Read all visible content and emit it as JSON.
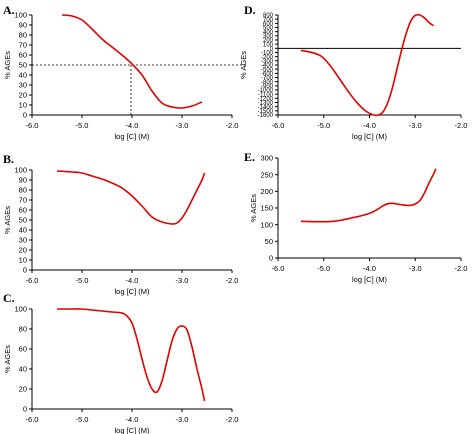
{
  "chart_data": [
    {
      "panel": "A.",
      "type": "line",
      "xlabel": "log [C] (M)",
      "ylabel": "% AGEs",
      "xlim": [
        -6.0,
        -2.0
      ],
      "ylim": [
        0,
        100
      ],
      "xticks": [
        "-6.0",
        "-5.0",
        "-4.0",
        "-3.0",
        "-2.0"
      ],
      "yticks": [
        "0",
        "10",
        "20",
        "30",
        "40",
        "50",
        "60",
        "70",
        "80",
        "90",
        "100"
      ],
      "x": [
        -5.4,
        -5.2,
        -5.0,
        -4.8,
        -4.6,
        -4.4,
        -4.2,
        -4.0,
        -3.8,
        -3.6,
        -3.4,
        -3.2,
        -3.0,
        -2.8,
        -2.6
      ],
      "y": [
        100,
        99,
        95,
        86,
        76,
        68,
        60,
        51,
        40,
        24,
        12,
        8,
        7,
        9,
        13
      ],
      "reference": {
        "y": 50,
        "x": -4.02
      },
      "grid": false
    },
    {
      "panel": "B.",
      "type": "line",
      "xlabel": "log [C] (M)",
      "ylabel": "% AGEs",
      "xlim": [
        -6.0,
        -2.0
      ],
      "ylim": [
        0,
        100
      ],
      "xticks": [
        "-6.0",
        "-5.0",
        "-4.0",
        "-3.0",
        "-2.0"
      ],
      "yticks": [
        "0",
        "10",
        "20",
        "30",
        "40",
        "50",
        "60",
        "70",
        "80",
        "90",
        "100"
      ],
      "x": [
        -5.5,
        -5.2,
        -5.0,
        -4.8,
        -4.6,
        -4.4,
        -4.2,
        -4.0,
        -3.8,
        -3.6,
        -3.4,
        -3.2,
        -3.1,
        -3.0,
        -2.9,
        -2.8,
        -2.7,
        -2.6,
        -2.55
      ],
      "y": [
        99,
        98,
        97,
        94,
        91,
        87,
        82,
        74,
        64,
        53,
        48,
        46,
        47,
        52,
        60,
        70,
        80,
        90,
        97
      ],
      "grid": false
    },
    {
      "panel": "C.",
      "type": "line",
      "xlabel": "log [C] (M)",
      "ylabel": "% AGEs",
      "xlim": [
        -6.0,
        -2.0
      ],
      "ylim": [
        0,
        100
      ],
      "xticks": [
        "-6.0",
        "-5.0",
        "-4.0",
        "-3.0",
        "-2.0"
      ],
      "yticks": [
        "0",
        "20",
        "40",
        "60",
        "80",
        "100"
      ],
      "x": [
        -5.5,
        -5.2,
        -5.0,
        -4.8,
        -4.6,
        -4.4,
        -4.2,
        -4.1,
        -4.0,
        -3.9,
        -3.8,
        -3.7,
        -3.6,
        -3.5,
        -3.4,
        -3.3,
        -3.2,
        -3.1,
        -3.0,
        -2.9,
        -2.8,
        -2.7,
        -2.6,
        -2.55
      ],
      "y": [
        100,
        100,
        100,
        99,
        98,
        97,
        96,
        93,
        86,
        70,
        50,
        32,
        20,
        17,
        28,
        48,
        68,
        80,
        83,
        79,
        62,
        40,
        20,
        8
      ],
      "grid": false
    },
    {
      "panel": "D.",
      "type": "line",
      "xlabel": "log [C] (M)",
      "ylabel": "% AGEs",
      "xlim": [
        -6.0,
        -2.0
      ],
      "ylim": [
        -1600,
        800
      ],
      "xticks": [
        "-6.0",
        "-5.0",
        "-4.0",
        "-3.0",
        "-2.0"
      ],
      "yticks": [
        "-1600",
        "-1500",
        "-1400",
        "-1300",
        "-1200",
        "-1100",
        "-1000",
        "-900",
        "-800",
        "-700",
        "-600",
        "-500",
        "-400",
        "-300",
        "-200",
        "-100",
        "0",
        "100",
        "200",
        "300",
        "400",
        "500",
        "600",
        "700",
        "800"
      ],
      "x": [
        -5.5,
        -5.3,
        -5.1,
        -5.0,
        -4.9,
        -4.8,
        -4.7,
        -4.6,
        -4.5,
        -4.4,
        -4.3,
        -4.2,
        -4.1,
        -4.0,
        -3.9,
        -3.8,
        -3.7,
        -3.6,
        -3.5,
        -3.4,
        -3.3,
        -3.2,
        -3.1,
        -3.0,
        -2.9,
        -2.8,
        -2.7,
        -2.6
      ],
      "y": [
        -50,
        -90,
        -160,
        -240,
        -360,
        -500,
        -660,
        -820,
        -980,
        -1130,
        -1270,
        -1390,
        -1490,
        -1560,
        -1600,
        -1600,
        -1520,
        -1300,
        -950,
        -500,
        -50,
        350,
        650,
        790,
        800,
        730,
        620,
        540
      ],
      "zero_line": true,
      "grid": false
    },
    {
      "panel": "E.",
      "type": "line",
      "xlabel": "log [C] (M)",
      "ylabel": "% AGEs",
      "xlim": [
        -6.0,
        -2.0
      ],
      "ylim": [
        0,
        300
      ],
      "xticks": [
        "-6.0",
        "-5.0",
        "-4.0",
        "-3.0",
        "-2.0"
      ],
      "yticks": [
        "0",
        "50",
        "100",
        "150",
        "200",
        "250",
        "300"
      ],
      "x": [
        -5.5,
        -5.2,
        -5.0,
        -4.8,
        -4.6,
        -4.4,
        -4.2,
        -4.0,
        -3.9,
        -3.8,
        -3.7,
        -3.6,
        -3.5,
        -3.4,
        -3.3,
        -3.2,
        -3.1,
        -3.0,
        -2.9,
        -2.8,
        -2.7,
        -2.6,
        -2.55
      ],
      "y": [
        110,
        109,
        109,
        110,
        114,
        120,
        126,
        134,
        140,
        148,
        157,
        163,
        164,
        162,
        160,
        158,
        158,
        162,
        172,
        195,
        225,
        252,
        268
      ],
      "grid": false
    }
  ]
}
